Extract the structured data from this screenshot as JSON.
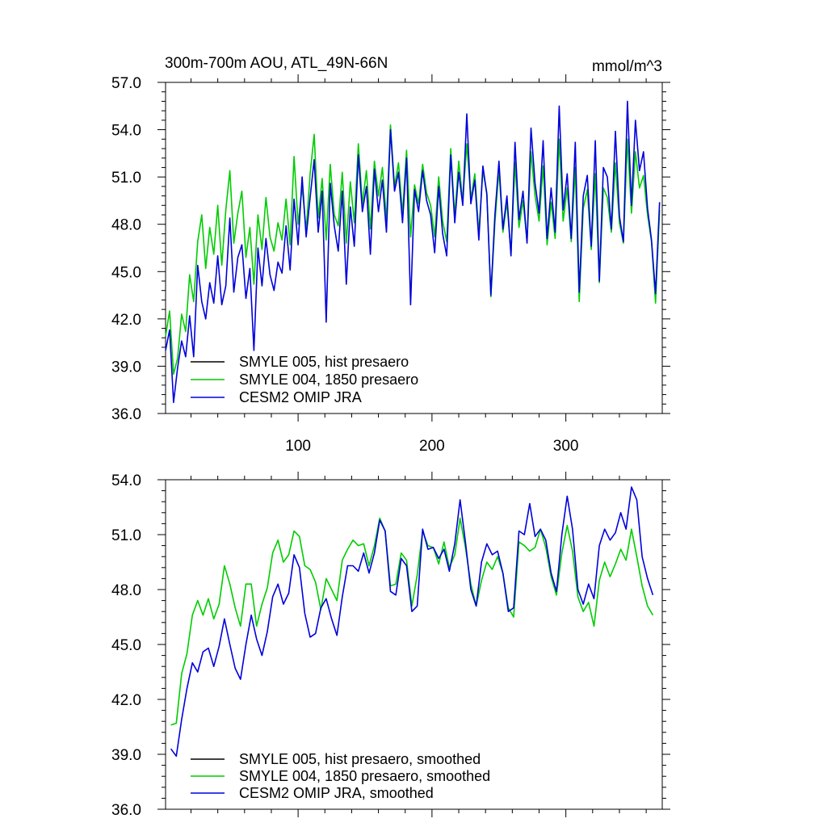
{
  "figure": {
    "title": "300m-700m AOU, ATL_49N-66N",
    "units": "mmol/m^3"
  },
  "chart_data": [
    {
      "type": "line",
      "title": "300m-700m AOU, ATL_49N-66N",
      "units_label": "mmol/m^3",
      "xlabel": "",
      "ylabel": "",
      "xlim": [
        1,
        372
      ],
      "ylim": [
        36.0,
        57.0
      ],
      "x_ticks": [
        100,
        200,
        300
      ],
      "x_tick_labels": [
        "100",
        "200",
        "300"
      ],
      "y_ticks": [
        36.0,
        39.0,
        42.0,
        45.0,
        48.0,
        51.0,
        54.0,
        57.0
      ],
      "y_tick_labels": [
        "36.0",
        "39.0",
        "42.0",
        "45.0",
        "48.0",
        "51.0",
        "54.0",
        "57.0"
      ],
      "legend_position": "bottom-left",
      "series": [
        {
          "name": "SMYLE 005, hist presaero",
          "color": "#000000",
          "values": []
        },
        {
          "name": "SMYLE 004, 1850 presaero",
          "color": "#00cc00",
          "x": [
            1,
            4,
            7,
            10,
            13,
            16,
            19,
            22,
            25,
            28,
            31,
            34,
            37,
            40,
            43,
            46,
            49,
            52,
            55,
            58,
            61,
            64,
            67,
            70,
            73,
            76,
            79,
            82,
            85,
            88,
            91,
            94,
            97,
            100,
            103,
            106,
            109,
            112,
            115,
            118,
            121,
            124,
            127,
            130,
            133,
            136,
            139,
            142,
            145,
            148,
            151,
            154,
            157,
            160,
            163,
            166,
            169,
            172,
            175,
            178,
            181,
            184,
            187,
            190,
            193,
            196,
            199,
            202,
            205,
            208,
            211,
            214,
            217,
            220,
            223,
            226,
            229,
            232,
            235,
            238,
            241,
            244,
            247,
            250,
            253,
            256,
            259,
            262,
            265,
            268,
            271,
            274,
            277,
            280,
            283,
            286,
            289,
            292,
            295,
            298,
            301,
            304,
            307,
            310,
            313,
            316,
            319,
            322,
            325,
            328,
            331,
            334,
            337,
            340,
            343,
            346,
            349,
            352,
            355,
            358,
            361,
            364,
            367,
            370
          ],
          "values": [
            40.9,
            42.5,
            38.5,
            39.5,
            42.3,
            41.2,
            44.8,
            43.1,
            46.9,
            48.6,
            45.2,
            47.8,
            46.1,
            49.2,
            45.4,
            48.9,
            51.4,
            46.8,
            48.7,
            50.1,
            45.9,
            47.8,
            44.2,
            48.6,
            46.4,
            49.7,
            47.2,
            46.3,
            48.1,
            47.0,
            49.6,
            46.7,
            52.3,
            48.0,
            50.4,
            47.6,
            51.2,
            53.7,
            48.4,
            50.9,
            47.0,
            51.8,
            48.6,
            47.9,
            51.3,
            46.8,
            50.7,
            48.1,
            53.1,
            49.3,
            51.4,
            47.7,
            52.0,
            49.8,
            51.6,
            48.3,
            54.3,
            50.4,
            51.9,
            48.7,
            52.7,
            47.2,
            50.5,
            49.3,
            51.8,
            50.0,
            49.2,
            47.2,
            51.0,
            48.2,
            46.9,
            52.8,
            48.5,
            52.0,
            49.5,
            53.1,
            49.6,
            51.2,
            47.4,
            51.4,
            50.0,
            43.4,
            48.1,
            51.5,
            47.5,
            49.4,
            46.1,
            51.9,
            47.8,
            49.5,
            46.9,
            52.6,
            49.8,
            48.2,
            51.7,
            46.7,
            49.4,
            47.1,
            53.4,
            48.2,
            50.3,
            46.9,
            51.6,
            43.1,
            49.0,
            50.2,
            46.4,
            51.2,
            44.3,
            50.3,
            49.7,
            47.5,
            51.9,
            48.1,
            46.8,
            53.4,
            48.7,
            52.6,
            50.3,
            51.1,
            48.6,
            46.9,
            43.0,
            48.9
          ]
        },
        {
          "name": "CESM2 OMIP JRA",
          "color": "#0000dd",
          "x": [
            1,
            4,
            7,
            10,
            13,
            16,
            19,
            22,
            25,
            28,
            31,
            34,
            37,
            40,
            43,
            46,
            49,
            52,
            55,
            58,
            61,
            64,
            67,
            70,
            73,
            76,
            79,
            82,
            85,
            88,
            91,
            94,
            97,
            100,
            103,
            106,
            109,
            112,
            115,
            118,
            121,
            124,
            127,
            130,
            133,
            136,
            139,
            142,
            145,
            148,
            151,
            154,
            157,
            160,
            163,
            166,
            169,
            172,
            175,
            178,
            181,
            184,
            187,
            190,
            193,
            196,
            199,
            202,
            205,
            208,
            211,
            214,
            217,
            220,
            223,
            226,
            229,
            232,
            235,
            238,
            241,
            244,
            247,
            250,
            253,
            256,
            259,
            262,
            265,
            268,
            271,
            274,
            277,
            280,
            283,
            286,
            289,
            292,
            295,
            298,
            301,
            304,
            307,
            310,
            313,
            316,
            319,
            322,
            325,
            328,
            331,
            334,
            337,
            340,
            343,
            346,
            349,
            352,
            355,
            358,
            361,
            364,
            367,
            370
          ],
          "values": [
            40.0,
            41.3,
            36.7,
            38.9,
            40.6,
            39.6,
            42.2,
            39.6,
            45.4,
            43.1,
            42.0,
            44.3,
            43.0,
            46.0,
            42.9,
            44.1,
            48.4,
            43.7,
            45.9,
            46.7,
            43.3,
            45.2,
            40.0,
            46.5,
            44.1,
            47.1,
            44.8,
            43.8,
            45.6,
            44.9,
            47.9,
            45.1,
            49.6,
            46.7,
            51.0,
            47.2,
            49.7,
            52.1,
            47.5,
            50.1,
            41.8,
            50.6,
            47.9,
            46.3,
            50.1,
            44.2,
            49.1,
            46.6,
            52.4,
            48.8,
            50.4,
            46.1,
            51.5,
            48.8,
            50.8,
            47.5,
            54.0,
            50.1,
            51.3,
            48.1,
            52.2,
            42.9,
            50.2,
            48.8,
            51.4,
            49.5,
            48.6,
            46.2,
            50.4,
            47.4,
            46.0,
            52.4,
            48.1,
            51.3,
            49.2,
            55.0,
            49.3,
            50.8,
            47.0,
            51.7,
            49.9,
            43.5,
            48.6,
            52.0,
            47.7,
            49.8,
            46.0,
            53.2,
            48.3,
            50.1,
            46.8,
            54.1,
            50.6,
            48.7,
            53.3,
            47.1,
            50.3,
            47.5,
            55.5,
            48.9,
            51.2,
            47.1,
            53.2,
            43.7,
            49.8,
            51.1,
            46.6,
            53.3,
            44.4,
            51.6,
            51.0,
            47.7,
            53.9,
            48.5,
            46.9,
            55.8,
            49.2,
            54.6,
            51.4,
            52.6,
            49.0,
            47.0,
            43.6,
            49.4
          ]
        }
      ]
    },
    {
      "type": "line",
      "title": "",
      "xlabel": "",
      "ylabel": "",
      "xlim": [
        1,
        372
      ],
      "ylim": [
        36.0,
        54.0
      ],
      "x_ticks": [
        100,
        200,
        300
      ],
      "x_tick_labels": [],
      "y_ticks": [
        36.0,
        39.0,
        42.0,
        45.0,
        48.0,
        51.0,
        54.0
      ],
      "y_tick_labels": [
        "36.0",
        "39.0",
        "42.0",
        "45.0",
        "48.0",
        "51.0",
        "54.0"
      ],
      "legend_position": "bottom-left",
      "series": [
        {
          "name": "SMYLE 005, hist presaero, smoothed",
          "color": "#000000",
          "values": []
        },
        {
          "name": "SMYLE 004, 1850 presaero, smoothed",
          "color": "#00cc00",
          "x": [
            5,
            9,
            13,
            17,
            21,
            25,
            29,
            33,
            37,
            41,
            45,
            49,
            53,
            57,
            61,
            65,
            69,
            73,
            77,
            81,
            85,
            89,
            93,
            97,
            101,
            105,
            109,
            113,
            117,
            121,
            125,
            129,
            133,
            137,
            141,
            145,
            149,
            153,
            157,
            161,
            165,
            169,
            173,
            177,
            181,
            185,
            189,
            193,
            197,
            201,
            205,
            209,
            213,
            217,
            221,
            225,
            229,
            233,
            237,
            241,
            245,
            249,
            253,
            257,
            261,
            265,
            269,
            273,
            277,
            281,
            285,
            289,
            293,
            297,
            301,
            305,
            309,
            313,
            317,
            321,
            325,
            329,
            333,
            337,
            341,
            345,
            349,
            353,
            357,
            361,
            365
          ],
          "values": [
            40.6,
            40.7,
            43.4,
            44.5,
            46.6,
            47.4,
            46.6,
            47.5,
            46.4,
            47.2,
            49.3,
            48.3,
            47.0,
            46.0,
            48.3,
            48.3,
            46.0,
            47.2,
            48.1,
            50.0,
            50.7,
            49.5,
            49.9,
            51.2,
            50.9,
            49.3,
            49.1,
            48.4,
            46.9,
            48.6,
            48.0,
            47.4,
            49.6,
            50.2,
            50.7,
            50.4,
            50.5,
            49.3,
            50.4,
            51.9,
            51.2,
            48.2,
            48.3,
            50.0,
            49.6,
            47.1,
            48.8,
            51.2,
            50.4,
            50.3,
            49.4,
            50.6,
            49.2,
            49.9,
            51.9,
            50.3,
            48.3,
            47.1,
            48.5,
            49.5,
            49.1,
            49.8,
            48.9,
            47.0,
            46.5,
            50.6,
            50.4,
            50.1,
            50.3,
            51.3,
            50.3,
            48.7,
            47.7,
            50.0,
            51.5,
            50.1,
            47.6,
            46.8,
            47.3,
            46.0,
            48.5,
            49.5,
            48.7,
            49.4,
            50.2,
            49.6,
            51.3,
            49.8,
            48.2,
            47.1,
            46.6
          ]
        },
        {
          "name": "CESM2 OMIP JRA, smoothed",
          "color": "#0000dd",
          "x": [
            5,
            9,
            13,
            17,
            21,
            25,
            29,
            33,
            37,
            41,
            45,
            49,
            53,
            57,
            61,
            65,
            69,
            73,
            77,
            81,
            85,
            89,
            93,
            97,
            101,
            105,
            109,
            113,
            117,
            121,
            125,
            129,
            133,
            137,
            141,
            145,
            149,
            153,
            157,
            161,
            165,
            169,
            173,
            177,
            181,
            185,
            189,
            193,
            197,
            201,
            205,
            209,
            213,
            217,
            221,
            225,
            229,
            233,
            237,
            241,
            245,
            249,
            253,
            257,
            261,
            265,
            269,
            273,
            277,
            281,
            285,
            289,
            293,
            297,
            301,
            305,
            309,
            313,
            317,
            321,
            325,
            329,
            333,
            337,
            341,
            345,
            349,
            353,
            357,
            361,
            365
          ],
          "values": [
            39.3,
            38.9,
            40.9,
            42.6,
            44.0,
            43.5,
            44.6,
            44.8,
            43.8,
            44.9,
            46.4,
            45.0,
            43.7,
            43.1,
            45.0,
            46.6,
            45.3,
            44.4,
            45.7,
            47.6,
            48.3,
            47.2,
            47.8,
            49.9,
            49.2,
            46.7,
            45.4,
            45.6,
            47.0,
            47.5,
            46.4,
            45.5,
            47.6,
            49.3,
            49.3,
            49.0,
            50.0,
            48.9,
            50.0,
            51.8,
            51.2,
            47.9,
            47.7,
            49.7,
            49.3,
            46.8,
            47.1,
            51.3,
            50.2,
            50.3,
            49.7,
            50.2,
            49.0,
            50.5,
            52.9,
            50.6,
            48.0,
            47.1,
            49.5,
            50.5,
            49.9,
            50.1,
            48.9,
            46.8,
            47.0,
            51.2,
            51.0,
            52.7,
            50.9,
            51.3,
            50.7,
            48.9,
            47.9,
            51.0,
            53.1,
            51.3,
            48.0,
            47.2,
            48.3,
            47.5,
            50.4,
            51.3,
            50.7,
            51.1,
            52.2,
            51.3,
            53.6,
            52.9,
            49.8,
            48.6,
            47.7
          ]
        }
      ]
    }
  ]
}
